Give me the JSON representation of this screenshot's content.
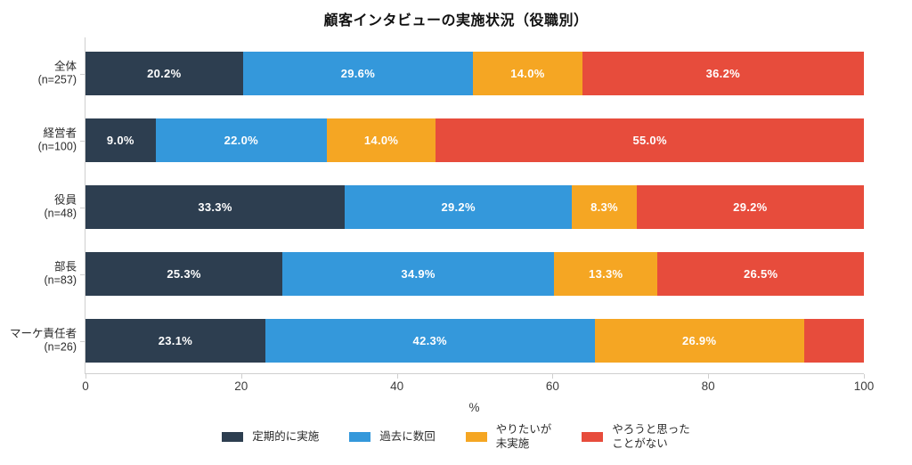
{
  "chart_data": {
    "type": "bar",
    "variant": "horizontal-stacked",
    "title": "顧客インタビューの実施状況（役職別）",
    "xlabel": "%",
    "xlim": [
      0,
      100
    ],
    "xticks": [
      0,
      20,
      40,
      60,
      80,
      100
    ],
    "grid": false,
    "legend_position": "bottom-center",
    "categories": [
      {
        "name": "全体",
        "n_label": "(n=257)"
      },
      {
        "name": "経営者",
        "n_label": "(n=100)"
      },
      {
        "name": "役員",
        "n_label": "(n=48)"
      },
      {
        "name": "部長",
        "n_label": "(n=83)"
      },
      {
        "name": "マーケ責任者",
        "n_label": "(n=26)"
      }
    ],
    "series": [
      {
        "name": "定期的に実施",
        "legend_label": "定期的に実施",
        "color": "#2d3e50",
        "values": [
          20.2,
          9.0,
          33.3,
          25.3,
          23.1
        ]
      },
      {
        "name": "過去に数回",
        "legend_label": "過去に数回",
        "color": "#3498db",
        "values": [
          29.6,
          22.0,
          29.2,
          34.9,
          42.3
        ]
      },
      {
        "name": "やりたいが未実施",
        "legend_label": "やりたいが\n未実施",
        "color": "#f5a623",
        "values": [
          14.0,
          14.0,
          8.3,
          13.3,
          26.9
        ]
      },
      {
        "name": "やろうと思ったことがない",
        "legend_label": "やろうと思った\nことがない",
        "color": "#e74c3c",
        "values": [
          36.2,
          55.0,
          29.2,
          26.5,
          7.7
        ]
      }
    ],
    "hidden_value_labels": [
      {
        "category_index": 4,
        "series_index": 3
      }
    ],
    "value_label_suffix": "%",
    "bar_label_color": "#ffffff",
    "axis_color": "#cfcfcf"
  }
}
